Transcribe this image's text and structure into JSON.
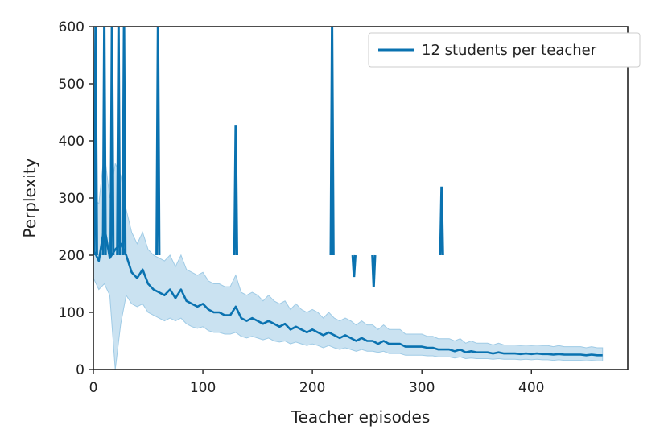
{
  "colors": {
    "line": "#0a72b0",
    "band": "#9fcbe6",
    "axes": "#222222"
  },
  "chart_data": {
    "type": "line",
    "title": "",
    "xlabel": "Teacher episodes",
    "ylabel": "Perplexity",
    "xlim": [
      0,
      488
    ],
    "ylim": [
      0,
      600
    ],
    "xticks": [
      0,
      100,
      200,
      300,
      400
    ],
    "yticks": [
      0,
      100,
      200,
      300,
      400,
      500,
      600
    ],
    "grid": false,
    "legend_position": "top-right",
    "series": [
      {
        "name": "12 students per teacher",
        "x": [
          0,
          5,
          10,
          15,
          20,
          25,
          30,
          35,
          40,
          45,
          50,
          55,
          60,
          65,
          70,
          75,
          80,
          85,
          90,
          95,
          100,
          105,
          110,
          115,
          120,
          125,
          130,
          135,
          140,
          145,
          150,
          155,
          160,
          165,
          170,
          175,
          180,
          185,
          190,
          195,
          200,
          205,
          210,
          215,
          220,
          225,
          230,
          235,
          240,
          245,
          250,
          255,
          260,
          265,
          270,
          275,
          280,
          285,
          290,
          295,
          300,
          305,
          310,
          315,
          320,
          325,
          330,
          335,
          340,
          345,
          350,
          355,
          360,
          365,
          370,
          375,
          380,
          385,
          390,
          395,
          400,
          405,
          410,
          415,
          420,
          425,
          430,
          435,
          440,
          445,
          450,
          455,
          460,
          465
        ],
        "y": [
          210,
          190,
          250,
          195,
          210,
          220,
          200,
          170,
          160,
          175,
          150,
          140,
          135,
          130,
          140,
          125,
          140,
          120,
          115,
          110,
          115,
          105,
          100,
          100,
          95,
          95,
          110,
          90,
          85,
          90,
          85,
          80,
          85,
          80,
          75,
          80,
          70,
          75,
          70,
          65,
          70,
          65,
          60,
          65,
          60,
          55,
          60,
          55,
          50,
          55,
          50,
          50,
          45,
          50,
          45,
          45,
          45,
          40,
          40,
          40,
          40,
          38,
          38,
          35,
          35,
          35,
          32,
          35,
          30,
          32,
          30,
          30,
          30,
          28,
          30,
          28,
          28,
          28,
          27,
          28,
          27,
          28,
          27,
          27,
          26,
          27,
          26,
          26,
          26,
          26,
          25,
          26,
          25,
          25
        ],
        "lower": [
          160,
          140,
          150,
          130,
          0,
          80,
          130,
          115,
          110,
          115,
          100,
          95,
          90,
          85,
          90,
          85,
          90,
          80,
          75,
          72,
          75,
          68,
          65,
          65,
          62,
          62,
          65,
          58,
          55,
          58,
          55,
          52,
          55,
          50,
          48,
          50,
          45,
          48,
          45,
          42,
          45,
          42,
          38,
          42,
          38,
          35,
          38,
          35,
          32,
          35,
          32,
          32,
          30,
          32,
          28,
          28,
          28,
          25,
          25,
          25,
          25,
          24,
          24,
          22,
          22,
          22,
          20,
          22,
          19,
          20,
          19,
          19,
          19,
          18,
          19,
          18,
          18,
          18,
          17,
          18,
          17,
          18,
          17,
          17,
          16,
          17,
          16,
          16,
          16,
          16,
          15,
          16,
          15,
          15
        ],
        "upper": [
          300,
          290,
          380,
          300,
          360,
          340,
          280,
          240,
          220,
          240,
          210,
          200,
          195,
          190,
          200,
          180,
          200,
          175,
          170,
          165,
          170,
          155,
          150,
          150,
          145,
          145,
          165,
          135,
          130,
          135,
          130,
          120,
          130,
          120,
          115,
          120,
          105,
          115,
          105,
          100,
          105,
          100,
          90,
          100,
          90,
          85,
          90,
          85,
          78,
          85,
          78,
          78,
          70,
          78,
          70,
          70,
          70,
          62,
          62,
          62,
          62,
          58,
          58,
          54,
          54,
          54,
          50,
          54,
          46,
          50,
          46,
          46,
          46,
          43,
          46,
          43,
          43,
          43,
          42,
          43,
          42,
          43,
          42,
          42,
          40,
          42,
          40,
          40,
          40,
          40,
          38,
          40,
          38,
          38
        ],
        "spikes": [
          {
            "x": 2,
            "y": 600
          },
          {
            "x": 10,
            "y": 600
          },
          {
            "x": 17,
            "y": 600
          },
          {
            "x": 23,
            "y": 600
          },
          {
            "x": 28,
            "y": 600
          },
          {
            "x": 59,
            "y": 600
          },
          {
            "x": 130,
            "y": 428
          },
          {
            "x": 218,
            "y": 600
          },
          {
            "x": 238,
            "y": 162
          },
          {
            "x": 256,
            "y": 145
          },
          {
            "x": 318,
            "y": 320
          }
        ]
      }
    ]
  }
}
